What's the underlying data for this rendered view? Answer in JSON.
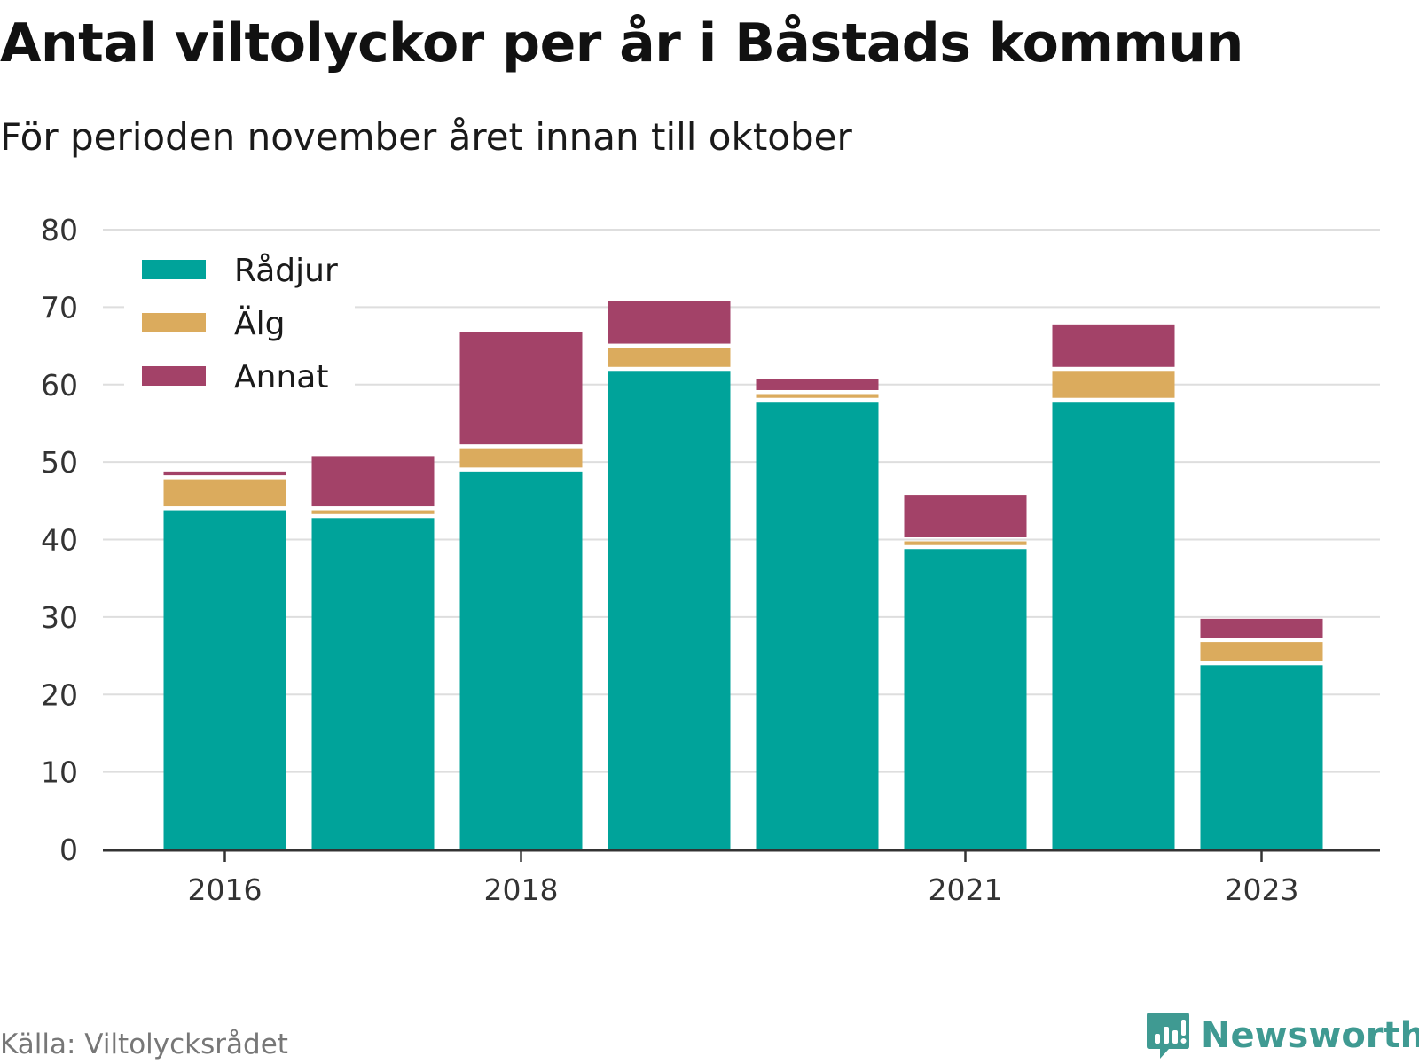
{
  "chart_data": {
    "type": "bar",
    "stacked": true,
    "title": "Antal viltolyckor per år i Båstads kommun",
    "subtitle": "För perioden november året innan till oktober",
    "categories": [
      2016,
      2017,
      2018,
      2019,
      2020,
      2021,
      2022,
      2023
    ],
    "x_tick_labels": [
      "2016",
      "2018",
      "2021",
      "2023"
    ],
    "series": [
      {
        "name": "Rådjur",
        "color": "#00a39a",
        "values": [
          44,
          43,
          49,
          62,
          58,
          39,
          58,
          24
        ]
      },
      {
        "name": "Älg",
        "color": "#dbab5d",
        "values": [
          4,
          1,
          3,
          3,
          1,
          1,
          4,
          3
        ]
      },
      {
        "name": "Annat",
        "color": "#a34268",
        "values": [
          1,
          7,
          15,
          6,
          2,
          6,
          6,
          3
        ]
      }
    ],
    "ylim": [
      0,
      80
    ],
    "y_ticks": [
      0,
      10,
      20,
      30,
      40,
      50,
      60,
      70,
      80
    ],
    "grid": true,
    "legend_position": "top-left"
  },
  "source": "Källa: Viltolycksrådet",
  "brand": {
    "name": "Newsworthy",
    "icon": "newsworthy-logo-icon",
    "color": "#3f9a92"
  }
}
